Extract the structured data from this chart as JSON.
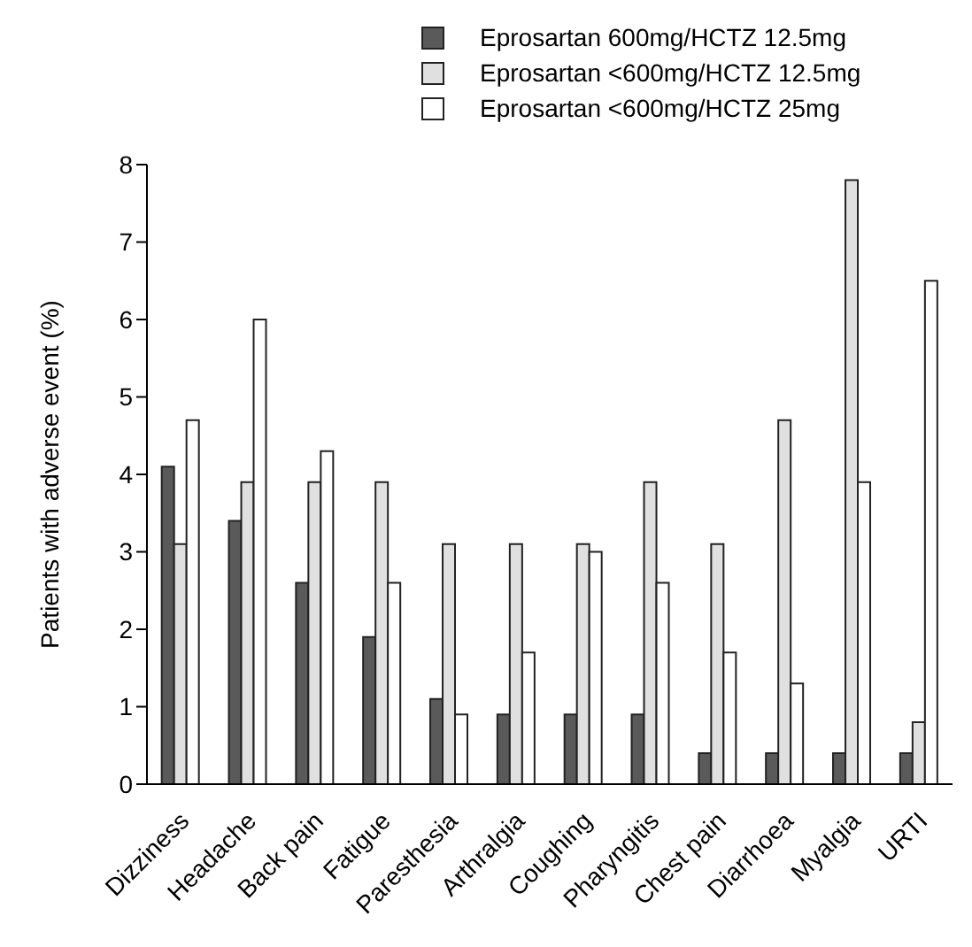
{
  "chart_data": {
    "type": "bar",
    "ylabel": "Patients with adverse event (%)",
    "categories": [
      "Dizziness",
      "Headache",
      "Back pain",
      "Fatigue",
      "Paresthesia",
      "Arthralgia",
      "Coughing",
      "Pharyngitis",
      "Chest pain",
      "Diarrhoea",
      "Myalgia",
      "URTI"
    ],
    "series": [
      {
        "name": "Eprosartan 600mg/HCTZ 12.5mg",
        "color": "#5a5a5a",
        "values": [
          4.1,
          3.4,
          2.6,
          1.9,
          1.1,
          0.9,
          0.9,
          0.9,
          0.4,
          0.4,
          0.4,
          0.4
        ]
      },
      {
        "name": "Eprosartan <600mg/HCTZ 12.5mg",
        "color": "#e0e0e0",
        "values": [
          3.1,
          3.9,
          3.9,
          3.9,
          3.1,
          3.1,
          3.1,
          3.9,
          3.1,
          4.7,
          7.8,
          0.8
        ]
      },
      {
        "name": "Eprosartan <600mg/HCTZ 25mg",
        "color": "#ffffff",
        "values": [
          4.7,
          6.0,
          4.3,
          2.6,
          0.9,
          1.7,
          3.0,
          2.6,
          1.7,
          1.3,
          3.9,
          6.5
        ]
      }
    ],
    "ylim": [
      0,
      8
    ],
    "yticks": [
      0,
      1,
      2,
      3,
      4,
      5,
      6,
      7,
      8
    ],
    "grid": false,
    "legend": "top right"
  }
}
